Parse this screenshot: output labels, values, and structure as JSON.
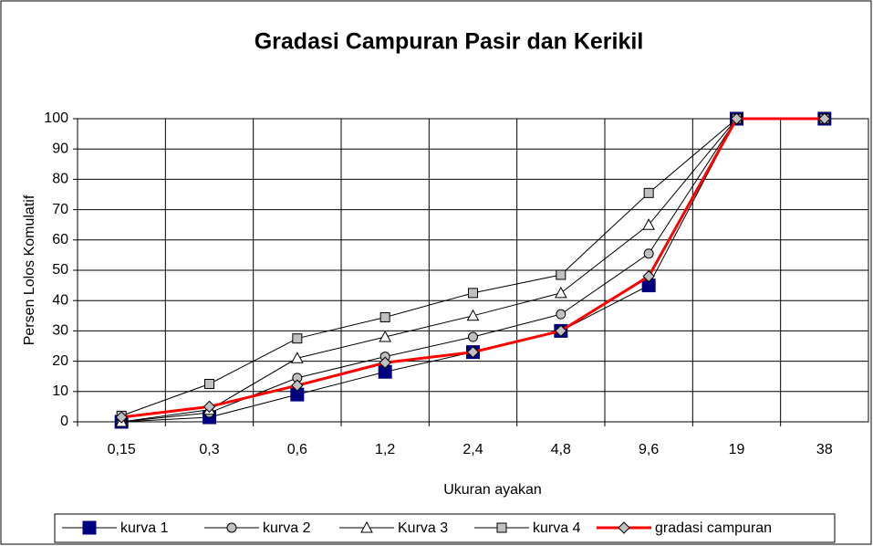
{
  "chart_data": {
    "type": "line",
    "title": "Gradasi Campuran Pasir dan Kerikil",
    "x_label": "Ukuran ayakan",
    "y_label": "Persen Lolos Komulatif",
    "categories": [
      "0,15",
      "0,3",
      "0,6",
      "1,2",
      "2,4",
      "4,8",
      "9,6",
      "19",
      "38"
    ],
    "ylim": [
      0,
      100
    ],
    "yticks": [
      0,
      10,
      20,
      30,
      40,
      50,
      60,
      70,
      80,
      90,
      100
    ],
    "grid": true,
    "legend": "bottom",
    "series": [
      {
        "name": "kurva 1",
        "color": "#000000",
        "marker": "square",
        "marker_color": "#000080",
        "values": [
          0,
          1.5,
          9,
          16.5,
          23,
          30,
          45,
          100,
          100
        ]
      },
      {
        "name": "kurva 2",
        "color": "#000000",
        "marker": "circle",
        "marker_color": "#c0c0c0",
        "values": [
          0,
          3,
          14.5,
          21.5,
          28,
          35.5,
          55.5,
          100,
          100
        ]
      },
      {
        "name": "Kurva 3",
        "color": "#000000",
        "marker": "triangle",
        "marker_color": "#ffffff",
        "values": [
          0,
          4,
          21,
          28,
          35,
          42.5,
          65,
          100,
          100
        ]
      },
      {
        "name": "kurva 4",
        "color": "#000000",
        "marker": "square-small",
        "marker_color": "#c0c0c0",
        "values": [
          2,
          12.5,
          27.5,
          34.5,
          42.5,
          48.5,
          75.5,
          100,
          100
        ]
      },
      {
        "name": "gradasi campuran",
        "color": "#ff0000",
        "marker": "diamond",
        "marker_color": "#c0c0c0",
        "values": [
          1.5,
          5,
          12,
          19.5,
          23,
          30,
          48,
          100,
          100
        ]
      }
    ]
  }
}
